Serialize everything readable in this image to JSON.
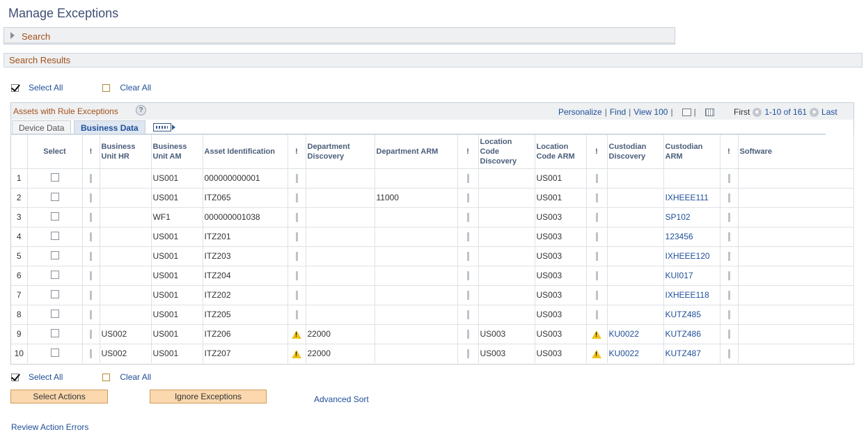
{
  "page": {
    "title": "Manage Exceptions"
  },
  "search_section": {
    "label": "Search"
  },
  "results_section": {
    "label": "Search Results"
  },
  "top_controls": {
    "select_all": "Select All",
    "clear_all": "Clear All"
  },
  "grid": {
    "title": "Assets with Rule Exceptions",
    "help": "?",
    "nav": {
      "personalize": "Personalize",
      "find": "Find",
      "view": "View 100",
      "sep": "|"
    },
    "pager": {
      "first": "First",
      "range": "1-10 of 161",
      "last": "Last"
    },
    "tabs": [
      {
        "label": "Device Data"
      },
      {
        "label": "Business Data"
      }
    ],
    "columns": {
      "select": "Select",
      "flag": "!",
      "bu_hr": "Business Unit HR",
      "bu_am": "Business Unit AM",
      "asset_id": "Asset Identification",
      "dept_disc": "Department Discovery",
      "dept_arm": "Department ARM",
      "loc_disc": "Location Code Discovery",
      "loc_arm": "Location Code ARM",
      "cust_disc": "Custodian Discovery",
      "cust_arm": "Custodian ARM",
      "software": "Software"
    },
    "rows": [
      {
        "n": "1",
        "f1": "pipe",
        "bu_hr": "",
        "bu_am": "US001",
        "asset": "000000000001",
        "f2": "pipe",
        "dept_disc": "",
        "dept_arm": "",
        "f3": "pipe",
        "loc_disc": "",
        "loc_arm": "US001",
        "f4": "pipe",
        "cust_disc": "",
        "cust_arm": "",
        "f5": "pipe",
        "software": ""
      },
      {
        "n": "2",
        "f1": "pipe",
        "bu_hr": "",
        "bu_am": "US001",
        "asset": "ITZ065",
        "f2": "pipe",
        "dept_disc": "",
        "dept_arm": "11000",
        "f3": "pipe",
        "loc_disc": "",
        "loc_arm": "US001",
        "f4": "pipe",
        "cust_disc": "",
        "cust_arm": "IXHEEE111",
        "f5": "pipe",
        "software": ""
      },
      {
        "n": "3",
        "f1": "pipe",
        "bu_hr": "",
        "bu_am": "WF1",
        "asset": "000000001038",
        "f2": "pipe",
        "dept_disc": "",
        "dept_arm": "",
        "f3": "pipe",
        "loc_disc": "",
        "loc_arm": "US003",
        "f4": "pipe",
        "cust_disc": "",
        "cust_arm": "SP102",
        "f5": "pipe",
        "software": ""
      },
      {
        "n": "4",
        "f1": "pipe",
        "bu_hr": "",
        "bu_am": "US001",
        "asset": "ITZ201",
        "f2": "pipe",
        "dept_disc": "",
        "dept_arm": "",
        "f3": "pipe",
        "loc_disc": "",
        "loc_arm": "US003",
        "f4": "pipe",
        "cust_disc": "",
        "cust_arm": "123456",
        "f5": "pipe",
        "software": ""
      },
      {
        "n": "5",
        "f1": "pipe",
        "bu_hr": "",
        "bu_am": "US001",
        "asset": "ITZ203",
        "f2": "pipe",
        "dept_disc": "",
        "dept_arm": "",
        "f3": "pipe",
        "loc_disc": "",
        "loc_arm": "US003",
        "f4": "pipe",
        "cust_disc": "",
        "cust_arm": "IXHEEE120",
        "f5": "pipe",
        "software": ""
      },
      {
        "n": "6",
        "f1": "pipe",
        "bu_hr": "",
        "bu_am": "US001",
        "asset": "ITZ204",
        "f2": "pipe",
        "dept_disc": "",
        "dept_arm": "",
        "f3": "pipe",
        "loc_disc": "",
        "loc_arm": "US003",
        "f4": "pipe",
        "cust_disc": "",
        "cust_arm": "KUI017",
        "f5": "pipe",
        "software": ""
      },
      {
        "n": "7",
        "f1": "pipe",
        "bu_hr": "",
        "bu_am": "US001",
        "asset": "ITZ202",
        "f2": "pipe",
        "dept_disc": "",
        "dept_arm": "",
        "f3": "pipe",
        "loc_disc": "",
        "loc_arm": "US003",
        "f4": "pipe",
        "cust_disc": "",
        "cust_arm": "IXHEEE118",
        "f5": "pipe",
        "software": ""
      },
      {
        "n": "8",
        "f1": "pipe",
        "bu_hr": "",
        "bu_am": "US001",
        "asset": "ITZ205",
        "f2": "pipe",
        "dept_disc": "",
        "dept_arm": "",
        "f3": "pipe",
        "loc_disc": "",
        "loc_arm": "US003",
        "f4": "pipe",
        "cust_disc": "",
        "cust_arm": "KUTZ485",
        "f5": "pipe",
        "software": ""
      },
      {
        "n": "9",
        "f1": "pipe",
        "bu_hr": "US002",
        "bu_am": "US001",
        "asset": "ITZ206",
        "f2": "warn",
        "dept_disc": "22000",
        "dept_arm": "",
        "f3": "pipe",
        "loc_disc": "US003",
        "loc_arm": "US003",
        "f4": "warn",
        "cust_disc": "KU0022",
        "cust_arm": "KUTZ486",
        "f5": "pipe",
        "software": ""
      },
      {
        "n": "10",
        "f1": "pipe",
        "bu_hr": "US002",
        "bu_am": "US001",
        "asset": "ITZ207",
        "f2": "warn",
        "dept_disc": "22000",
        "dept_arm": "",
        "f3": "pipe",
        "loc_disc": "US003",
        "loc_arm": "US003",
        "f4": "warn",
        "cust_disc": "KU0022",
        "cust_arm": "KUTZ487",
        "f5": "pipe",
        "software": ""
      }
    ]
  },
  "bottom_controls": {
    "select_all": "Select All",
    "clear_all": "Clear All",
    "select_actions": "Select Actions",
    "ignore_exceptions": "Ignore Exceptions",
    "advanced_sort": "Advanced Sort",
    "review_errors": "Review Action Errors"
  }
}
